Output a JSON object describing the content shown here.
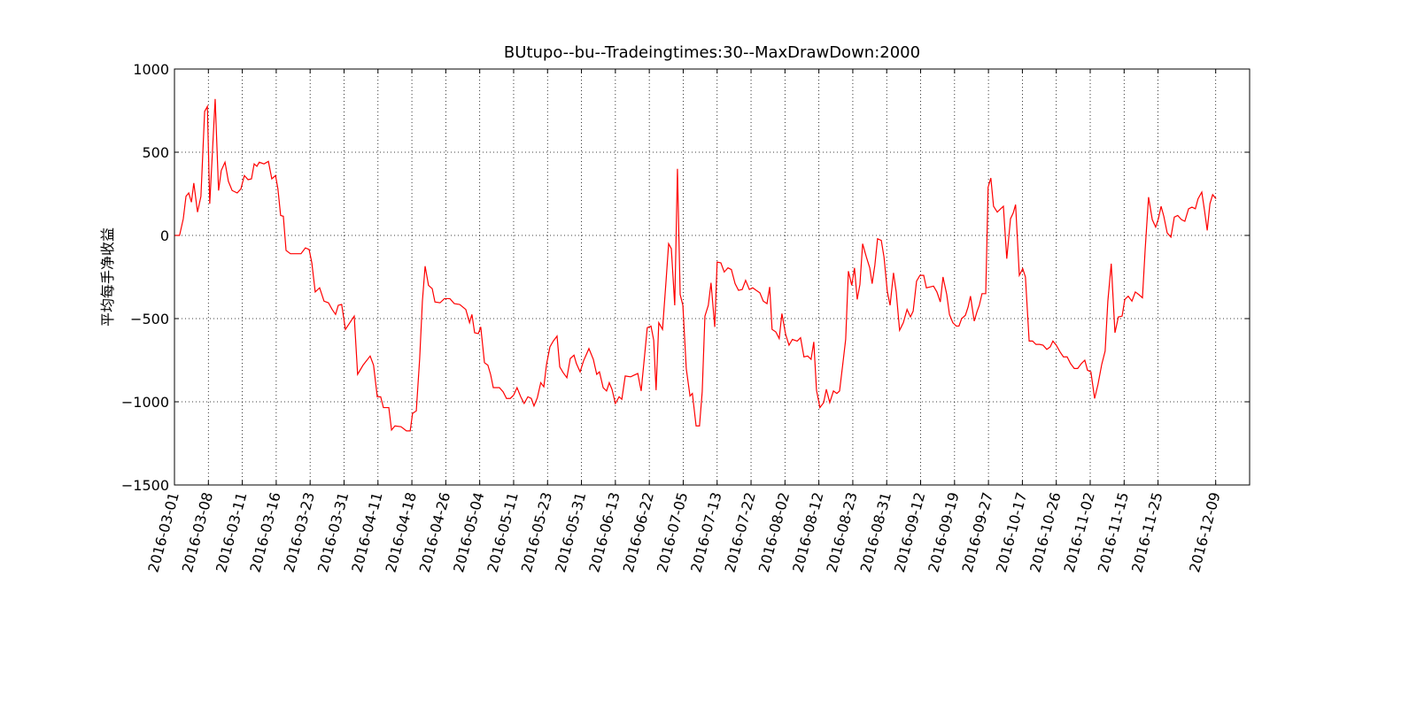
{
  "chart_data": {
    "type": "line",
    "title": "BUtupo--bu--Tradeingtimes:30--MaxDrawDown:2000",
    "y_label": "平均每手净收益",
    "grid": true,
    "xlim": [
      0,
      317
    ],
    "ylim": [
      -1500,
      1000
    ],
    "yticks": [
      {
        "value": -1500,
        "label": "−1500"
      },
      {
        "value": -1000,
        "label": "−1000"
      },
      {
        "value": -500,
        "label": "−500"
      },
      0,
      500,
      1000
    ],
    "xticks": [
      {
        "value": 0,
        "label": "2016-03-01"
      },
      {
        "value": 10,
        "label": "2016-03-08"
      },
      {
        "value": 20,
        "label": "2016-03-11"
      },
      {
        "value": 30,
        "label": "2016-03-16"
      },
      {
        "value": 40,
        "label": "2016-03-23"
      },
      {
        "value": 50,
        "label": "2016-03-31"
      },
      {
        "value": 60,
        "label": "2016-04-11"
      },
      {
        "value": 70,
        "label": "2016-04-18"
      },
      {
        "value": 80,
        "label": "2016-04-26"
      },
      {
        "value": 90,
        "label": "2016-05-04"
      },
      {
        "value": 100,
        "label": "2016-05-11"
      },
      {
        "value": 110,
        "label": "2016-05-23"
      },
      {
        "value": 120,
        "label": "2016-05-31"
      },
      {
        "value": 130,
        "label": "2016-06-13"
      },
      {
        "value": 140,
        "label": "2016-06-22"
      },
      {
        "value": 150,
        "label": "2016-07-05"
      },
      {
        "value": 160,
        "label": "2016-07-13"
      },
      {
        "value": 170,
        "label": "2016-07-22"
      },
      {
        "value": 180,
        "label": "2016-08-02"
      },
      {
        "value": 190,
        "label": "2016-08-12"
      },
      {
        "value": 200,
        "label": "2016-08-23"
      },
      {
        "value": 210,
        "label": "2016-08-31"
      },
      {
        "value": 220,
        "label": "2016-09-12"
      },
      {
        "value": 230,
        "label": "2016-09-19"
      },
      {
        "value": 240,
        "label": "2016-09-27"
      },
      {
        "value": 250,
        "label": "2016-10-17"
      },
      {
        "value": 260,
        "label": "2016-10-26"
      },
      {
        "value": 270,
        "label": "2016-11-02"
      },
      {
        "value": 280,
        "label": "2016-11-15"
      },
      {
        "value": 290,
        "label": "2016-11-25"
      },
      {
        "value": 307,
        "label": "2016-12-09"
      }
    ],
    "color": "#ff0000",
    "x": [
      0,
      1.5,
      2.6,
      3.4,
      4.2,
      5,
      5.7,
      6.8,
      7.8,
      8.9,
      9.7,
      10.4,
      12,
      13,
      13.8,
      14.9,
      15.9,
      17,
      18.5,
      19.6,
      20.6,
      21.7,
      22.7,
      23.5,
      24.3,
      25,
      26.4,
      27.7,
      28.7,
      29.8,
      30.5,
      31.3,
      32.1,
      32.9,
      34.2,
      37.3,
      38.6,
      39.7,
      40.5,
      41.5,
      42.8,
      44.1,
      45.4,
      46.5,
      47.5,
      48.3,
      49.3,
      50.4,
      51.7,
      53,
      54,
      55.6,
      57.7,
      58.7,
      59.8,
      60.8,
      61.6,
      63.2,
      64,
      65,
      66.8,
      68.4,
      69.5,
      70.2,
      71.3,
      72.3,
      73.1,
      73.9,
      74.9,
      76,
      76.8,
      78.3,
      79.6,
      81.2,
      82.5,
      84.1,
      85.9,
      87,
      87.7,
      88.5,
      89.6,
      90.3,
      91.4,
      92.4,
      93.2,
      94,
      95.8,
      96.9,
      97.9,
      99,
      100,
      101,
      102.1,
      103.1,
      104.2,
      105.2,
      106,
      107,
      108,
      108.9,
      109.7,
      110.7,
      111.7,
      112.8,
      113.6,
      114.6,
      115.7,
      116.7,
      117.8,
      118.5,
      119.6,
      120.6,
      122.2,
      123.5,
      124.5,
      125.3,
      126.4,
      127.4,
      128.2,
      129,
      130,
      131.1,
      131.9,
      132.9,
      134.5,
      135.5,
      136.6,
      137.6,
      138.6,
      139.4,
      140.5,
      141.3,
      142,
      142.8,
      143.9,
      144.9,
      145.7,
      146.5,
      147.5,
      148.3,
      149.1,
      149.9,
      150.9,
      152,
      152.7,
      153.8,
      154.8,
      155.6,
      156.4,
      157.4,
      158.2,
      159.3,
      160,
      161.1,
      162.1,
      163.2,
      164.2,
      165.3,
      166.3,
      167.4,
      168.4,
      169.5,
      170.5,
      171.5,
      172.6,
      173.6,
      174.7,
      175.5,
      176.2,
      177.3,
      178.3,
      179.1,
      180.2,
      181.2,
      182.2,
      183.6,
      184.6,
      185.6,
      186.7,
      187.7,
      188.5,
      189.3,
      190.3,
      191.4,
      192.2,
      193.2,
      194.3,
      195.3,
      196.1,
      197.1,
      197.9,
      198.7,
      199.7,
      200.5,
      201.3,
      202.1,
      202.9,
      204,
      205,
      205.7,
      206.5,
      207.3,
      208.4,
      209.2,
      210.2,
      211,
      212,
      212.8,
      213.8,
      214.9,
      216,
      217,
      217.8,
      218.8,
      219.8,
      220.9,
      221.7,
      222.7,
      223.8,
      224.8,
      225.8,
      226.6,
      227.7,
      228.5,
      229.5,
      230.5,
      231.3,
      232.1,
      233.2,
      234,
      234.7,
      235.8,
      236.6,
      237.3,
      238.1,
      239.2,
      239.9,
      240.7,
      241.5,
      242.6,
      243.6,
      244.4,
      245.4,
      246.5,
      247.3,
      248,
      249.1,
      250.1,
      250.9,
      252,
      253,
      254,
      255.1,
      256.1,
      257.2,
      258.2,
      259,
      260,
      261.1,
      262.1,
      263.2,
      264.2,
      265.3,
      266.3,
      267.4,
      268.4,
      269.2,
      270.2,
      271.3,
      272.3,
      273.4,
      274.4,
      275.2,
      276.2,
      277.3,
      278.3,
      279.4,
      280.2,
      281.2,
      282.3,
      283.3,
      284.3,
      285.4,
      286.2,
      287.2,
      288.3,
      289.3,
      290.1,
      290.9,
      291.7,
      292.7,
      293.8,
      294.8,
      295.8,
      296.9,
      297.9,
      299,
      300,
      301,
      301.8,
      302.9,
      303.7,
      304.5,
      305.3,
      306.1,
      307.1
    ],
    "values": [
      0,
      0,
      100,
      235,
      255,
      200,
      315,
      140,
      235,
      745,
      775,
      190,
      820,
      270,
      390,
      440,
      325,
      270,
      255,
      280,
      360,
      335,
      340,
      430,
      415,
      440,
      430,
      445,
      340,
      360,
      280,
      120,
      115,
      -90,
      -110,
      -110,
      -75,
      -85,
      -165,
      -340,
      -315,
      -395,
      -405,
      -445,
      -475,
      -420,
      -415,
      -565,
      -525,
      -485,
      -835,
      -780,
      -725,
      -780,
      -970,
      -970,
      -1035,
      -1035,
      -1170,
      -1145,
      -1150,
      -1175,
      -1175,
      -1070,
      -1055,
      -740,
      -395,
      -185,
      -300,
      -320,
      -400,
      -405,
      -380,
      -380,
      -410,
      -415,
      -445,
      -525,
      -475,
      -585,
      -590,
      -550,
      -765,
      -780,
      -835,
      -915,
      -915,
      -940,
      -980,
      -980,
      -960,
      -915,
      -970,
      -1010,
      -970,
      -980,
      -1025,
      -975,
      -885,
      -910,
      -775,
      -670,
      -635,
      -605,
      -790,
      -825,
      -855,
      -740,
      -720,
      -770,
      -820,
      -755,
      -680,
      -745,
      -835,
      -820,
      -915,
      -935,
      -885,
      -925,
      -1010,
      -970,
      -985,
      -845,
      -850,
      -840,
      -830,
      -935,
      -725,
      -555,
      -545,
      -630,
      -930,
      -525,
      -565,
      -285,
      -50,
      -80,
      -420,
      400,
      -355,
      -420,
      -800,
      -965,
      -950,
      -1145,
      -1145,
      -940,
      -485,
      -420,
      -285,
      -550,
      -160,
      -165,
      -220,
      -195,
      -205,
      -290,
      -330,
      -325,
      -270,
      -325,
      -315,
      -330,
      -345,
      -395,
      -410,
      -310,
      -565,
      -580,
      -620,
      -470,
      -595,
      -660,
      -625,
      -635,
      -615,
      -730,
      -725,
      -745,
      -640,
      -930,
      -1035,
      -1005,
      -925,
      -1005,
      -935,
      -950,
      -935,
      -765,
      -625,
      -215,
      -300,
      -195,
      -385,
      -295,
      -50,
      -130,
      -195,
      -290,
      -180,
      -20,
      -30,
      -130,
      -340,
      -420,
      -225,
      -340,
      -570,
      -525,
      -445,
      -490,
      -455,
      -275,
      -240,
      -240,
      -315,
      -310,
      -305,
      -340,
      -400,
      -250,
      -355,
      -475,
      -525,
      -545,
      -545,
      -500,
      -480,
      -430,
      -365,
      -515,
      -460,
      -420,
      -350,
      -350,
      290,
      345,
      175,
      140,
      160,
      175,
      -140,
      100,
      135,
      185,
      -240,
      -200,
      -250,
      -635,
      -635,
      -655,
      -655,
      -660,
      -685,
      -670,
      -635,
      -660,
      -700,
      -730,
      -730,
      -770,
      -800,
      -800,
      -770,
      -750,
      -810,
      -820,
      -980,
      -895,
      -775,
      -695,
      -395,
      -170,
      -585,
      -490,
      -485,
      -385,
      -365,
      -395,
      -340,
      -355,
      -375,
      -85,
      230,
      95,
      50,
      100,
      175,
      115,
      15,
      -10,
      110,
      120,
      95,
      85,
      160,
      170,
      160,
      220,
      260,
      150,
      30,
      190,
      245,
      220
    ]
  }
}
